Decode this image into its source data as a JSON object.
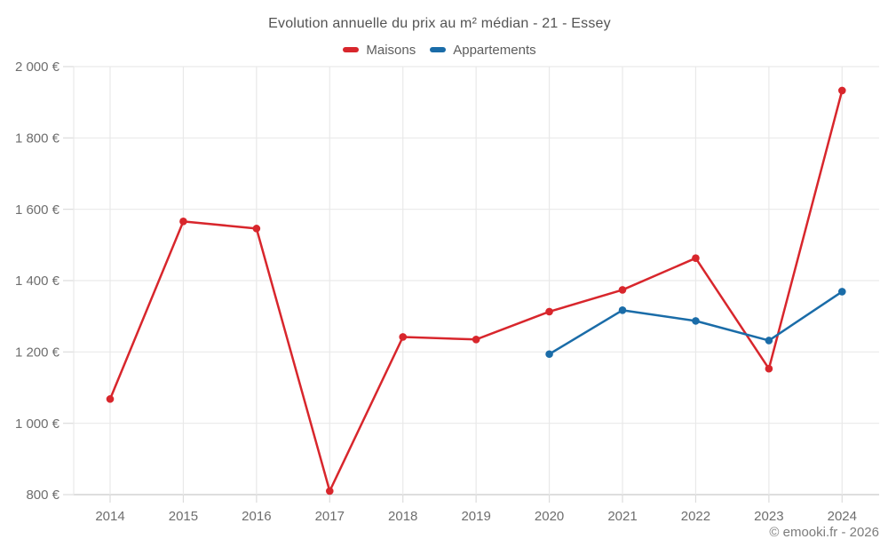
{
  "title": "Evolution annuelle du prix au m² médian - 21 - Essey",
  "copyright": "© emooki.fr - 2026",
  "legend": {
    "items": [
      {
        "label": "Maisons"
      },
      {
        "label": "Appartements"
      }
    ]
  },
  "chart_data": {
    "type": "line",
    "x": [
      2014,
      2015,
      2016,
      2017,
      2018,
      2019,
      2020,
      2021,
      2022,
      2023,
      2024
    ],
    "x_tick_labels": [
      "2014",
      "2015",
      "2016",
      "2017",
      "2018",
      "2019",
      "2020",
      "2021",
      "2022",
      "2023",
      "2024"
    ],
    "y_axis": {
      "min": 800,
      "max": 2000,
      "tick_step": 200,
      "tick_values": [
        800,
        1000,
        1200,
        1400,
        1600,
        1800,
        2000
      ],
      "tick_labels": [
        "800 €",
        "1 000 €",
        "1 200 €",
        "1 400 €",
        "1 600 €",
        "1 800 €",
        "2 000 €"
      ],
      "unit": "€"
    },
    "series": [
      {
        "name": "Maisons",
        "color": "#d8262c",
        "values": [
          1068,
          1566,
          1546,
          810,
          1242,
          1235,
          1313,
          1374,
          1463,
          1153,
          1933
        ]
      },
      {
        "name": "Appartements",
        "color": "#1a6ca8",
        "values": [
          null,
          null,
          null,
          null,
          null,
          null,
          1194,
          1317,
          1287,
          1232,
          1369
        ]
      }
    ],
    "grid": true,
    "legend_position": "top",
    "colors": {
      "gridline": "#e9e9e9",
      "axis_line": "#c9c9c9",
      "tick_mark": "#dcdcdc",
      "tick_text": "#6e6e6e"
    }
  }
}
